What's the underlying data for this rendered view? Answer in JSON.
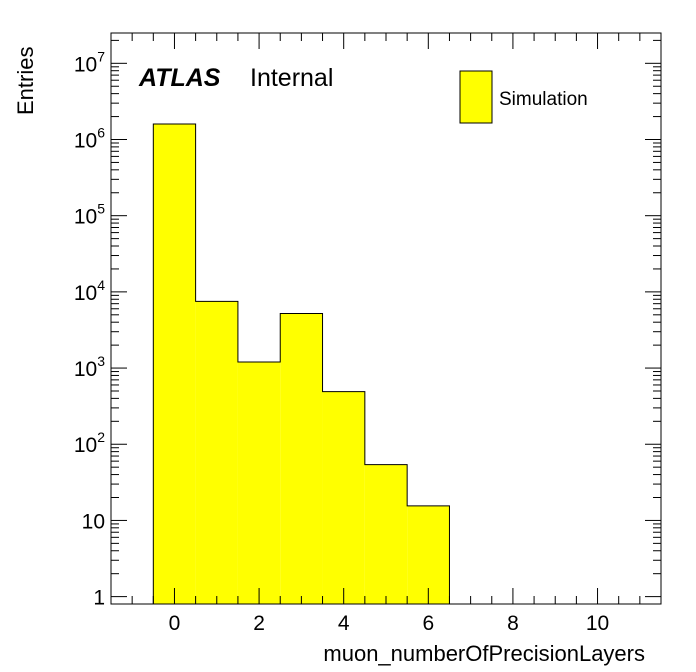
{
  "colors": {
    "fill": "#ffff00",
    "stroke": "#000000",
    "background": "#ffffff"
  },
  "labels": {
    "atlas": "ATLAS",
    "status": "Internal"
  },
  "chart_data": {
    "type": "bar",
    "histogram": true,
    "xlabel": "muon_numberOfPrecisionLayers",
    "ylabel": "Entries",
    "x_range": [
      -1.5,
      11.5
    ],
    "y_range": [
      0.8,
      25000000
    ],
    "y_scale": "log",
    "x_ticks": [
      "0",
      "2",
      "4",
      "6",
      "8",
      "10"
    ],
    "y_ticks": [
      {
        "base": "1",
        "exp": ""
      },
      {
        "base": "10",
        "exp": ""
      },
      {
        "base": "10",
        "exp": "2"
      },
      {
        "base": "10",
        "exp": "3"
      },
      {
        "base": "10",
        "exp": "4"
      },
      {
        "base": "10",
        "exp": "5"
      },
      {
        "base": "10",
        "exp": "6"
      },
      {
        "base": "10",
        "exp": "7"
      }
    ],
    "bins": [
      {
        "low": -0.5,
        "high": 0.5,
        "value": 1600000
      },
      {
        "low": 0.5,
        "high": 1.5,
        "value": 7500
      },
      {
        "low": 1.5,
        "high": 2.5,
        "value": 1200
      },
      {
        "low": 2.5,
        "high": 3.5,
        "value": 5200
      },
      {
        "low": 3.5,
        "high": 4.5,
        "value": 490
      },
      {
        "low": 4.5,
        "high": 5.5,
        "value": 54
      },
      {
        "low": 5.5,
        "high": 6.5,
        "value": 15.5
      }
    ],
    "legend": [
      {
        "name": "Simulation",
        "color": "#ffff00"
      }
    ],
    "legend_position": "top-right"
  }
}
